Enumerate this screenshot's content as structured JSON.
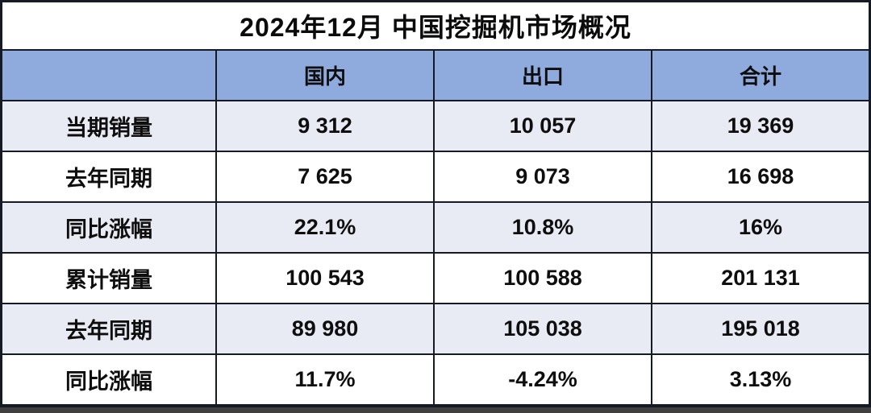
{
  "chart_data": {
    "type": "table",
    "title": "2024年12月 中国挖掘机市场概况",
    "columns": [
      "",
      "国内",
      "出口",
      "合计"
    ],
    "rows": [
      [
        "当期销量",
        "9 312",
        "10 057",
        "19 369"
      ],
      [
        "去年同期",
        "7 625",
        "9 073",
        "16 698"
      ],
      [
        "同比涨幅",
        "22.1%",
        "10.8%",
        "16%"
      ],
      [
        "累计销量",
        "100 543",
        "100 588",
        "201 131"
      ],
      [
        "去年同期",
        "89 980",
        "105 038",
        "195 018"
      ],
      [
        "同比涨幅",
        "11.7%",
        "-4.24%",
        "3.13%"
      ]
    ],
    "layout": {
      "striped": true,
      "stripe_rows": [
        0,
        2,
        4
      ],
      "number_group_separator": "space"
    }
  },
  "colors": {
    "header_bg": "#8faadc",
    "row_alt_bg": "#e9ebf4",
    "row_bg": "#ffffff",
    "grid_line": "#161a24",
    "bottom_bar": "#3f3f3f",
    "text": "#0e0e0e"
  }
}
